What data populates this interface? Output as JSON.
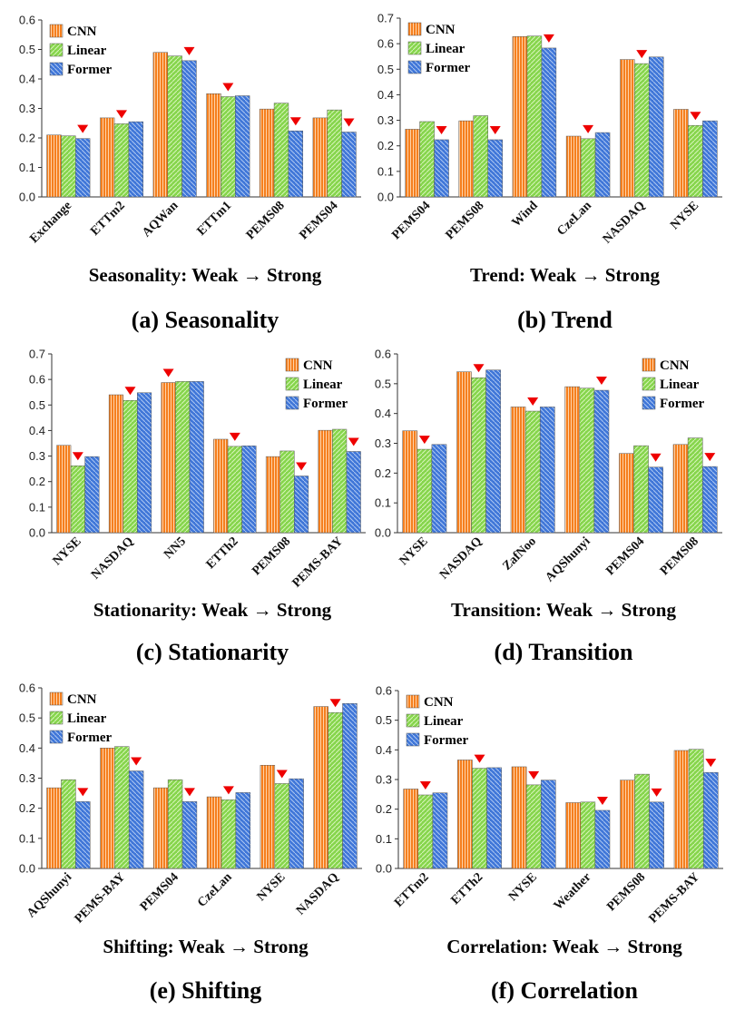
{
  "legend": [
    "CNN",
    "Linear",
    "Former"
  ],
  "colors": {
    "CNN": "#F57F1E",
    "Linear": "#86D54C",
    "Former": "#3F76D8",
    "marker": "#EE0000"
  },
  "chart_data": [
    {
      "type": "bar",
      "caption": "(a) Seasonality",
      "xlabel": "Seasonality:  Weak → Strong",
      "ylim": [
        0,
        0.6
      ],
      "yticks": [
        "0.0",
        "0.1",
        "0.2",
        "0.3",
        "0.4",
        "0.5",
        "0.6"
      ],
      "legend_position": "top-left",
      "categories": [
        "Exchange",
        "ETTm2",
        "AQWan",
        "ETTm1",
        "PEMS08",
        "PEMS04"
      ],
      "series": [
        {
          "name": "CNN",
          "values": [
            0.21,
            0.268,
            0.49,
            0.35,
            0.298,
            0.268
          ]
        },
        {
          "name": "Linear",
          "values": [
            0.207,
            0.248,
            0.478,
            0.34,
            0.318,
            0.295
          ]
        },
        {
          "name": "Former",
          "values": [
            0.198,
            0.255,
            0.462,
            0.343,
            0.224,
            0.22
          ]
        }
      ],
      "markers": [
        2,
        1,
        2,
        1,
        2,
        2
      ]
    },
    {
      "type": "bar",
      "caption": "(b) Trend",
      "xlabel": "Trend:  Weak → Strong",
      "ylim": [
        0,
        0.7
      ],
      "yticks": [
        "0.0",
        "0.1",
        "0.2",
        "0.3",
        "0.4",
        "0.5",
        "0.6",
        "0.7"
      ],
      "legend_position": "top-left",
      "categories": [
        "PEMS04",
        "PEMS08",
        "Wind",
        "CzeLan",
        "NASDAQ",
        "NYSE"
      ],
      "series": [
        {
          "name": "CNN",
          "values": [
            0.265,
            0.298,
            0.628,
            0.238,
            0.538,
            0.343
          ]
        },
        {
          "name": "Linear",
          "values": [
            0.295,
            0.318,
            0.63,
            0.228,
            0.522,
            0.28
          ]
        },
        {
          "name": "Former",
          "values": [
            0.224,
            0.224,
            0.583,
            0.252,
            0.548,
            0.298
          ]
        }
      ],
      "markers": [
        2,
        2,
        2,
        1,
        1,
        1
      ]
    },
    {
      "type": "bar",
      "caption": "(c) Stationarity",
      "xlabel": "Stationarity:  Weak → Strong",
      "ylim": [
        0,
        0.7
      ],
      "yticks": [
        "0.0",
        "0.1",
        "0.2",
        "0.3",
        "0.4",
        "0.5",
        "0.6",
        "0.7"
      ],
      "legend_position": "top-right",
      "categories": [
        "NYSE",
        "NASDAQ",
        "NN5",
        "ETTh2",
        "PEMS08",
        "PEMS-BAY"
      ],
      "series": [
        {
          "name": "CNN",
          "values": [
            0.342,
            0.54,
            0.588,
            0.366,
            0.298,
            0.401
          ]
        },
        {
          "name": "Linear",
          "values": [
            0.262,
            0.518,
            0.592,
            0.338,
            0.32,
            0.405
          ]
        },
        {
          "name": "Former",
          "values": [
            0.298,
            0.548,
            0.592,
            0.34,
            0.222,
            0.318
          ]
        }
      ],
      "markers": [
        1,
        1,
        0,
        1,
        2,
        2
      ]
    },
    {
      "type": "bar",
      "caption": "(d) Transition",
      "xlabel": "Transition:  Weak → Strong",
      "ylim": [
        0,
        0.6
      ],
      "yticks": [
        "0.0",
        "0.1",
        "0.2",
        "0.3",
        "0.4",
        "0.5",
        "0.6"
      ],
      "legend_position": "top-right",
      "categories": [
        "NYSE",
        "NASDAQ",
        "ZafNoo",
        "AQShunyi",
        "PEMS04",
        "PEMS08"
      ],
      "series": [
        {
          "name": "CNN",
          "values": [
            0.342,
            0.54,
            0.422,
            0.49,
            0.266,
            0.296
          ]
        },
        {
          "name": "Linear",
          "values": [
            0.28,
            0.52,
            0.408,
            0.485,
            0.292,
            0.318
          ]
        },
        {
          "name": "Former",
          "values": [
            0.296,
            0.546,
            0.422,
            0.478,
            0.22,
            0.222
          ]
        }
      ],
      "markers": [
        1,
        1,
        1,
        2,
        2,
        2
      ]
    },
    {
      "type": "bar",
      "caption": "(e) Shifting",
      "xlabel": "Shifting:  Weak → Strong",
      "ylim": [
        0,
        0.6
      ],
      "yticks": [
        "0.0",
        "0.1",
        "0.2",
        "0.3",
        "0.4",
        "0.5",
        "0.6"
      ],
      "legend_position": "top-left",
      "categories": [
        "AQShunyi",
        "PEMS-BAY",
        "PEMS04",
        "CzeLan",
        "NYSE",
        "NASDAQ"
      ],
      "series": [
        {
          "name": "CNN",
          "values": [
            0.268,
            0.4,
            0.268,
            0.238,
            0.343,
            0.538
          ]
        },
        {
          "name": "Linear",
          "values": [
            0.295,
            0.405,
            0.295,
            0.228,
            0.282,
            0.518
          ]
        },
        {
          "name": "Former",
          "values": [
            0.222,
            0.324,
            0.222,
            0.252,
            0.298,
            0.548
          ]
        }
      ],
      "markers": [
        2,
        2,
        2,
        1,
        1,
        1
      ]
    },
    {
      "type": "bar",
      "caption": "(f) Correlation",
      "xlabel": "Correlation:  Weak → Strong",
      "ylim": [
        0,
        0.6
      ],
      "yticks": [
        "0.0",
        "0.1",
        "0.2",
        "0.3",
        "0.4",
        "0.5",
        "0.6"
      ],
      "legend_position": "top-left",
      "categories": [
        "ETTm2",
        "ETTh2",
        "NYSE",
        "Weather",
        "PEMS08",
        "PEMS-BAY"
      ],
      "series": [
        {
          "name": "CNN",
          "values": [
            0.268,
            0.366,
            0.343,
            0.222,
            0.298,
            0.398
          ]
        },
        {
          "name": "Linear",
          "values": [
            0.248,
            0.338,
            0.282,
            0.224,
            0.318,
            0.402
          ]
        },
        {
          "name": "Former",
          "values": [
            0.255,
            0.34,
            0.298,
            0.196,
            0.224,
            0.324
          ]
        }
      ],
      "markers": [
        1,
        1,
        1,
        2,
        2,
        2
      ]
    }
  ]
}
